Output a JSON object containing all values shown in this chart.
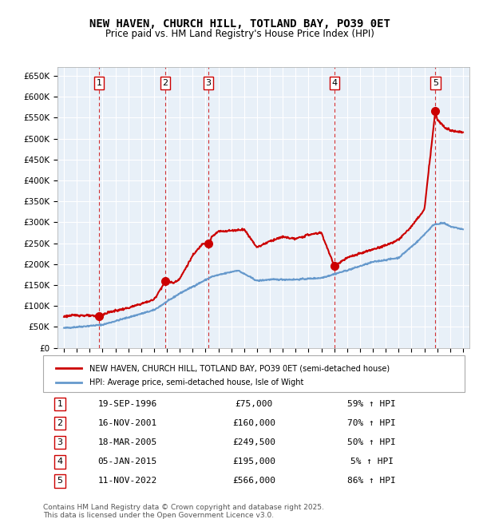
{
  "title": "NEW HAVEN, CHURCH HILL, TOTLAND BAY, PO39 0ET",
  "subtitle": "Price paid vs. HM Land Registry's House Price Index (HPI)",
  "red_label": "NEW HAVEN, CHURCH HILL, TOTLAND BAY, PO39 0ET (semi-detached house)",
  "blue_label": "HPI: Average price, semi-detached house, Isle of Wight",
  "footer": "Contains HM Land Registry data © Crown copyright and database right 2025.\nThis data is licensed under the Open Government Licence v3.0.",
  "transactions": [
    {
      "num": 1,
      "date": "1996-09-19",
      "price": 75000,
      "pct": "59% ↑ HPI"
    },
    {
      "num": 2,
      "date": "2001-11-16",
      "price": 160000,
      "pct": "70% ↑ HPI"
    },
    {
      "num": 3,
      "date": "2005-03-18",
      "price": 249500,
      "pct": "50% ↑ HPI"
    },
    {
      "num": 4,
      "date": "2015-01-05",
      "price": 195000,
      "pct": "5% ↑ HPI"
    },
    {
      "num": 5,
      "date": "2022-11-11",
      "price": 566000,
      "pct": "86% ↑ HPI"
    }
  ],
  "ylim": [
    0,
    670000
  ],
  "yticks": [
    0,
    50000,
    100000,
    150000,
    200000,
    250000,
    300000,
    350000,
    400000,
    450000,
    500000,
    550000,
    600000,
    650000
  ],
  "bg_color": "#dce6f1",
  "plot_bg": "#e8f0f8",
  "red_color": "#cc0000",
  "blue_color": "#6699cc",
  "vline_color": "#cc0000",
  "grid_color": "#ffffff"
}
